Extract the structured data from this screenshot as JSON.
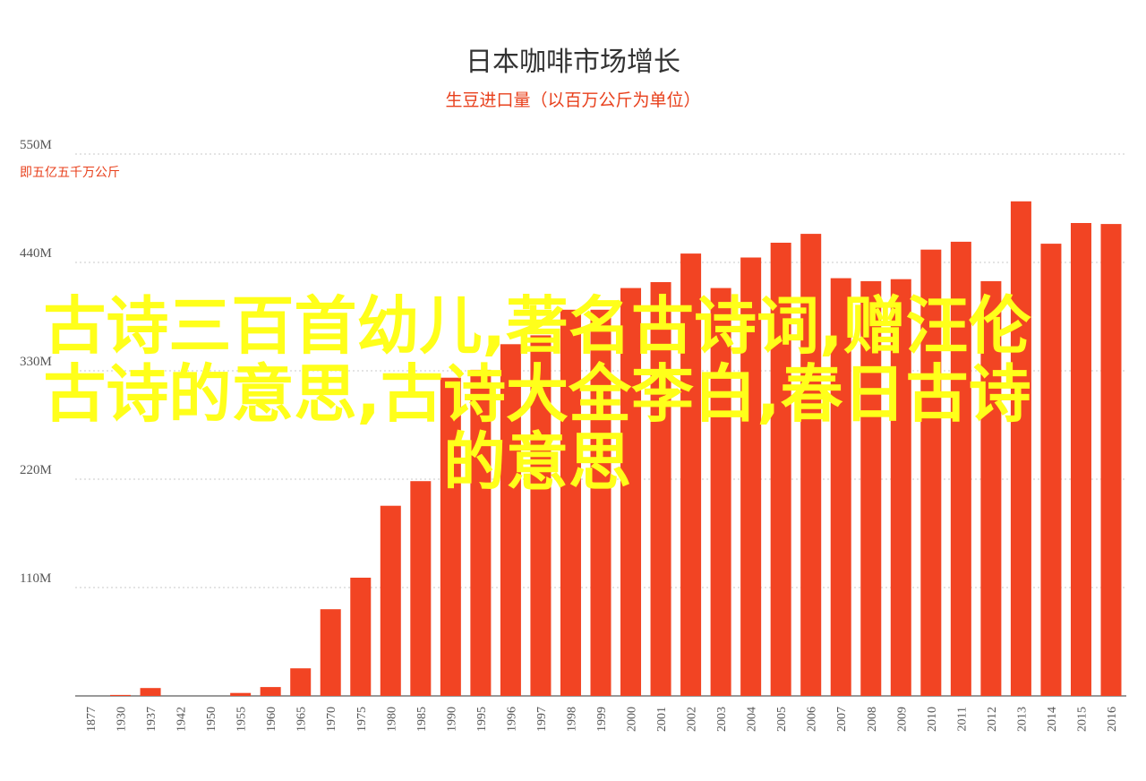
{
  "chart_data": {
    "type": "bar",
    "title": "日本咖啡市场增长",
    "subtitle": "生豆进口量（以百万公斤为单位）",
    "unit_note": "即五亿五千万公斤",
    "categories": [
      "1877",
      "1930",
      "1937",
      "1942",
      "1950",
      "1955",
      "1960",
      "1965",
      "1970",
      "1975",
      "1980",
      "1985",
      "1990",
      "1995",
      "1996",
      "1997",
      "1998",
      "1999",
      "2000",
      "2001",
      "2002",
      "2003",
      "2004",
      "2005",
      "2006",
      "2007",
      "2008",
      "2009",
      "2010",
      "2011",
      "2012",
      "2013",
      "2014",
      "2015",
      "2016"
    ],
    "values": [
      0,
      1,
      8,
      0,
      0,
      3,
      9,
      28,
      88,
      120,
      193,
      218,
      323,
      331,
      357,
      366,
      392,
      392,
      414,
      420,
      449,
      414,
      445,
      460,
      469,
      424,
      421,
      423,
      453,
      461,
      421,
      502,
      459,
      480,
      479
    ],
    "ylim": [
      0,
      550
    ],
    "y_ticks": [
      110,
      220,
      330,
      440,
      550
    ],
    "y_tick_labels": [
      "110M",
      "220M",
      "330M",
      "440M",
      "550M"
    ],
    "xlabel": "",
    "ylabel": "",
    "grid": true,
    "bar_color": "#f24423"
  },
  "overlay": {
    "text": "古诗三百首幼儿,著名古诗词,赠汪伦古诗的意思,古诗大全李白,春日古诗的意思",
    "color": "#ffff1a"
  }
}
